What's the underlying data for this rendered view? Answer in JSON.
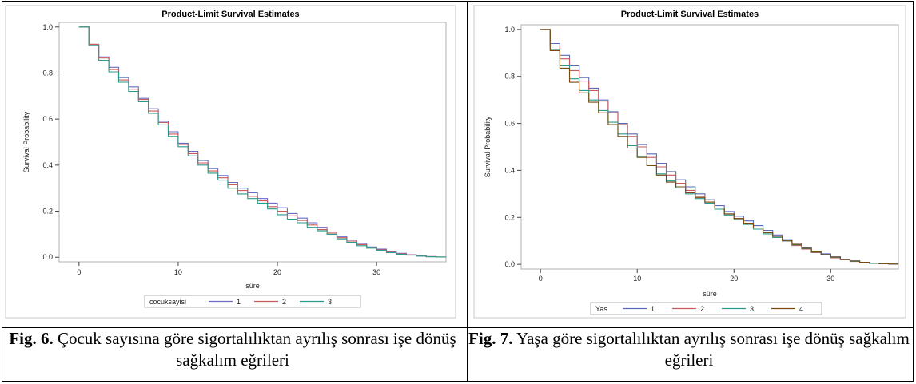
{
  "figures": [
    {
      "caption_label": "Fig. 6.",
      "caption_text": "Çocuk sayısına göre sigortalılıktan ayrılış sonrası işe dönüş sağkalım eğrileri"
    },
    {
      "caption_label": "Fig. 7.",
      "caption_text": "Yaşa göre sigortalılıktan ayrılış sonrası işe dönüş sağkalım eğrileri"
    }
  ],
  "chart_data": [
    {
      "type": "line",
      "step": true,
      "title": "Product-Limit Survival Estimates",
      "xlabel": "süre",
      "ylabel": "Survival Probability",
      "xlim": [
        -2,
        37
      ],
      "ylim": [
        -0.02,
        1.02
      ],
      "xticks": [
        0,
        10,
        20,
        30
      ],
      "yticks": [
        0.0,
        0.2,
        0.4,
        0.6,
        0.8,
        1.0
      ],
      "xtick_labels": [
        "0",
        "10",
        "20",
        "30"
      ],
      "ytick_labels": [
        "0.0",
        "0.2",
        "0.4",
        "0.6",
        "0.8",
        "1.0"
      ],
      "grid": false,
      "legend": {
        "title": "cocuksayisi",
        "placement": "bottom"
      },
      "series": [
        {
          "name": "1",
          "color": "#6b6bc8",
          "x": [
            0,
            1,
            2,
            3,
            4,
            5,
            6,
            7,
            8,
            9,
            10,
            11,
            12,
            13,
            14,
            15,
            16,
            17,
            18,
            19,
            20,
            21,
            22,
            23,
            24,
            25,
            26,
            27,
            28,
            29,
            30,
            31,
            32,
            33,
            34,
            35,
            36
          ],
          "y": [
            1.0,
            0.925,
            0.87,
            0.825,
            0.78,
            0.74,
            0.69,
            0.645,
            0.59,
            0.545,
            0.495,
            0.46,
            0.42,
            0.385,
            0.355,
            0.325,
            0.3,
            0.28,
            0.255,
            0.235,
            0.215,
            0.19,
            0.17,
            0.15,
            0.13,
            0.11,
            0.09,
            0.075,
            0.06,
            0.045,
            0.035,
            0.025,
            0.017,
            0.011,
            0.006,
            0.003,
            0.001
          ]
        },
        {
          "name": "2",
          "color": "#c85a5a",
          "x": [
            0,
            1,
            2,
            3,
            4,
            5,
            6,
            7,
            8,
            9,
            10,
            11,
            12,
            13,
            14,
            15,
            16,
            17,
            18,
            19,
            20,
            21,
            22,
            23,
            24,
            25,
            26,
            27,
            28,
            29,
            30,
            31,
            32,
            33,
            34,
            35,
            36
          ],
          "y": [
            1.0,
            0.925,
            0.865,
            0.815,
            0.77,
            0.73,
            0.685,
            0.635,
            0.585,
            0.535,
            0.49,
            0.45,
            0.41,
            0.375,
            0.345,
            0.315,
            0.29,
            0.265,
            0.245,
            0.22,
            0.2,
            0.18,
            0.16,
            0.14,
            0.12,
            0.105,
            0.085,
            0.07,
            0.055,
            0.04,
            0.032,
            0.022,
            0.015,
            0.01,
            0.005,
            0.003,
            0.001
          ]
        },
        {
          "name": "3",
          "color": "#2a9a8a",
          "x": [
            0,
            1,
            2,
            3,
            4,
            5,
            6,
            7,
            8,
            9,
            10,
            11,
            12,
            13,
            14,
            15,
            16,
            17,
            18,
            19,
            20,
            21,
            22,
            23,
            24,
            25,
            26,
            27,
            28,
            29,
            30,
            31,
            32,
            33,
            34,
            35,
            36
          ],
          "y": [
            1.0,
            0.92,
            0.855,
            0.805,
            0.76,
            0.72,
            0.675,
            0.625,
            0.575,
            0.525,
            0.48,
            0.44,
            0.4,
            0.365,
            0.335,
            0.3,
            0.275,
            0.255,
            0.235,
            0.21,
            0.185,
            0.165,
            0.15,
            0.13,
            0.115,
            0.1,
            0.08,
            0.065,
            0.05,
            0.04,
            0.03,
            0.02,
            0.013,
            0.009,
            0.005,
            0.002,
            0.001
          ]
        }
      ]
    },
    {
      "type": "line",
      "step": true,
      "title": "Product-Limit Survival Estimates",
      "xlabel": "süre",
      "ylabel": "Survival Probability",
      "xlim": [
        -2,
        37
      ],
      "ylim": [
        -0.02,
        1.02
      ],
      "xticks": [
        0,
        10,
        20,
        30
      ],
      "yticks": [
        0.0,
        0.2,
        0.4,
        0.6,
        0.8,
        1.0
      ],
      "xtick_labels": [
        "0",
        "10",
        "20",
        "30"
      ],
      "ytick_labels": [
        "0.0",
        "0.2",
        "0.4",
        "0.6",
        "0.8",
        "1.0"
      ],
      "grid": false,
      "legend": {
        "title": "Yas",
        "placement": "bottom"
      },
      "series": [
        {
          "name": "1",
          "color": "#5a6ab8",
          "x": [
            0,
            1,
            2,
            3,
            4,
            5,
            6,
            7,
            8,
            9,
            10,
            11,
            12,
            13,
            14,
            15,
            16,
            17,
            18,
            19,
            20,
            21,
            22,
            23,
            24,
            25,
            26,
            27,
            28,
            29,
            30,
            31,
            32,
            33,
            34,
            35,
            36
          ],
          "y": [
            1.0,
            0.94,
            0.89,
            0.845,
            0.795,
            0.75,
            0.7,
            0.65,
            0.6,
            0.555,
            0.51,
            0.47,
            0.43,
            0.395,
            0.36,
            0.33,
            0.3,
            0.275,
            0.25,
            0.225,
            0.205,
            0.185,
            0.165,
            0.145,
            0.125,
            0.105,
            0.09,
            0.07,
            0.055,
            0.045,
            0.032,
            0.022,
            0.015,
            0.009,
            0.005,
            0.002,
            0.001
          ]
        },
        {
          "name": "2",
          "color": "#c85a5a",
          "x": [
            0,
            1,
            2,
            3,
            4,
            5,
            6,
            7,
            8,
            9,
            10,
            11,
            12,
            13,
            14,
            15,
            16,
            17,
            18,
            19,
            20,
            21,
            22,
            23,
            24,
            25,
            26,
            27,
            28,
            29,
            30,
            31,
            32,
            33,
            34,
            35,
            36
          ],
          "y": [
            1.0,
            0.93,
            0.875,
            0.825,
            0.78,
            0.74,
            0.695,
            0.645,
            0.595,
            0.545,
            0.5,
            0.455,
            0.415,
            0.38,
            0.345,
            0.315,
            0.29,
            0.265,
            0.24,
            0.215,
            0.195,
            0.175,
            0.155,
            0.135,
            0.115,
            0.1,
            0.08,
            0.065,
            0.05,
            0.04,
            0.028,
            0.019,
            0.012,
            0.008,
            0.004,
            0.002,
            0.001
          ]
        },
        {
          "name": "3",
          "color": "#2a9a8a",
          "x": [
            0,
            1,
            2,
            3,
            4,
            5,
            6,
            7,
            8,
            9,
            10,
            11,
            12,
            13,
            14,
            15,
            16,
            17,
            18,
            19,
            20,
            21,
            22,
            23,
            24,
            25,
            26,
            27,
            28,
            29,
            30,
            31,
            32,
            33,
            34,
            35,
            36
          ],
          "y": [
            1.0,
            0.915,
            0.845,
            0.79,
            0.74,
            0.7,
            0.655,
            0.605,
            0.555,
            0.505,
            0.46,
            0.42,
            0.385,
            0.355,
            0.325,
            0.3,
            0.28,
            0.26,
            0.235,
            0.21,
            0.19,
            0.17,
            0.15,
            0.13,
            0.115,
            0.1,
            0.083,
            0.067,
            0.052,
            0.04,
            0.03,
            0.02,
            0.013,
            0.008,
            0.004,
            0.002,
            0.001
          ]
        },
        {
          "name": "4",
          "color": "#7a4a10",
          "x": [
            0,
            1,
            2,
            3,
            4,
            5,
            6,
            7,
            8,
            9,
            10,
            11,
            12,
            13,
            14,
            15,
            16,
            17,
            18,
            19,
            20,
            21,
            22,
            23,
            24,
            25,
            26,
            27,
            28,
            29,
            30,
            31,
            32,
            33,
            34,
            35,
            36
          ],
          "y": [
            1.0,
            0.91,
            0.835,
            0.775,
            0.73,
            0.69,
            0.645,
            0.595,
            0.545,
            0.495,
            0.455,
            0.42,
            0.38,
            0.35,
            0.33,
            0.305,
            0.285,
            0.265,
            0.24,
            0.215,
            0.195,
            0.175,
            0.155,
            0.135,
            0.12,
            0.1,
            0.085,
            0.068,
            0.053,
            0.041,
            0.031,
            0.021,
            0.014,
            0.009,
            0.005,
            0.002,
            0.001
          ]
        }
      ]
    }
  ]
}
